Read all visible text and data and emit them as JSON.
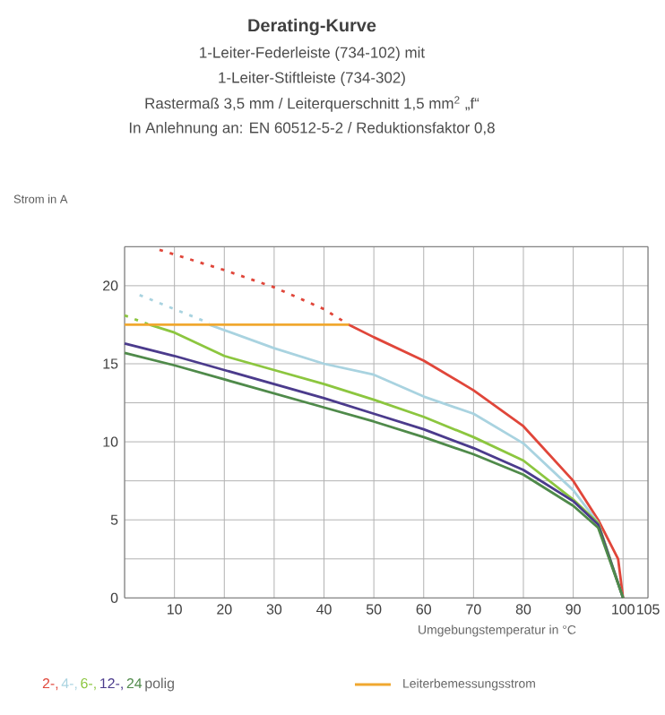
{
  "chart_data": {
    "type": "line",
    "title": "Derating-Kurve",
    "subtitle": "1-Leiter-Federleiste (734-102) mit",
    "annotations": [
      "1-Leiter-Stiftleiste (734-302)",
      "Rastermaß 3,5 mm / Leiterquerschnitt 1,5 mm$^{2}$ „f“",
      "In Anlehnung an: EN 60512-5-2 / Reduktionsfaktor 0,8"
    ],
    "xlabel": "Umgebungstemperatur in °C",
    "ylabel": "Strom in A",
    "legend_title": "polig",
    "xlim": [
      0,
      105
    ],
    "ylim": [
      0,
      22.5
    ],
    "xticks": [
      {
        "value": 0,
        "label": null
      },
      10,
      20,
      30,
      40,
      50,
      60,
      70,
      80,
      90,
      100,
      105
    ],
    "yticks": [
      0,
      {
        "value": 2.5,
        "label": null
      },
      5,
      {
        "value": 7.5,
        "label": null
      },
      10,
      {
        "value": 12.5,
        "label": null
      },
      15,
      {
        "value": 17.5,
        "label": null
      },
      20,
      {
        "value": 22.5,
        "label": null
      }
    ],
    "grid": true,
    "legend": "bottom",
    "series": [
      {
        "color": "#e0463a",
        "line_style": "dashed",
        "x": [
          7,
          20,
          30,
          40,
          45
        ],
        "values": [
          22.3,
          21.0,
          19.9,
          18.5,
          17.5
        ]
      },
      {
        "color": "#a9d3e0",
        "line_style": "dashed",
        "x": [
          3,
          10,
          17
        ],
        "values": [
          19.4,
          18.5,
          17.6
        ]
      },
      {
        "color": "#8cc63f",
        "line_style": "dashed",
        "x": [
          0,
          5
        ],
        "values": [
          18.1,
          17.5
        ]
      },
      {
        "name": "2-,",
        "color": "#e0463a",
        "line_style": "solid",
        "x": [
          45,
          50,
          60,
          70,
          80,
          90,
          95,
          99,
          100
        ],
        "values": [
          17.5,
          16.7,
          15.2,
          13.3,
          11.0,
          7.5,
          5.0,
          2.5,
          0
        ]
      },
      {
        "name": "4-,",
        "color": "#a9d3e0",
        "line_style": "solid",
        "x": [
          17,
          30,
          40,
          50,
          60,
          70,
          80,
          90,
          95,
          100
        ],
        "values": [
          17.5,
          16.0,
          15.0,
          14.3,
          12.9,
          11.8,
          9.9,
          6.9,
          4.8,
          0
        ]
      },
      {
        "name": "6-,",
        "color": "#8cc63f",
        "line_style": "solid",
        "x": [
          5,
          10,
          20,
          30,
          40,
          50,
          60,
          70,
          80,
          90,
          95,
          100
        ],
        "values": [
          17.5,
          17.0,
          15.5,
          14.6,
          13.7,
          12.7,
          11.6,
          10.3,
          8.8,
          6.3,
          4.8,
          0
        ]
      },
      {
        "name": "12-,",
        "color": "#4b3b8c",
        "line_style": "solid",
        "x": [
          0,
          10,
          20,
          30,
          40,
          50,
          60,
          70,
          80,
          90,
          95,
          100
        ],
        "values": [
          16.3,
          15.5,
          14.6,
          13.7,
          12.8,
          11.8,
          10.8,
          9.6,
          8.2,
          6.2,
          4.7,
          0
        ]
      },
      {
        "name": "24",
        "color": "#4f8a4a",
        "line_style": "solid",
        "x": [
          0,
          10,
          20,
          30,
          40,
          50,
          60,
          70,
          80,
          90,
          95,
          100
        ],
        "values": [
          15.7,
          14.9,
          14.0,
          13.1,
          12.2,
          11.3,
          10.3,
          9.2,
          7.9,
          5.9,
          4.5,
          0
        ]
      },
      {
        "name": "Leiterbemessungsstrom",
        "color": "#f0a830",
        "line_style": "solid",
        "x": [
          0,
          45
        ],
        "values": [
          17.5,
          17.5
        ]
      }
    ]
  }
}
